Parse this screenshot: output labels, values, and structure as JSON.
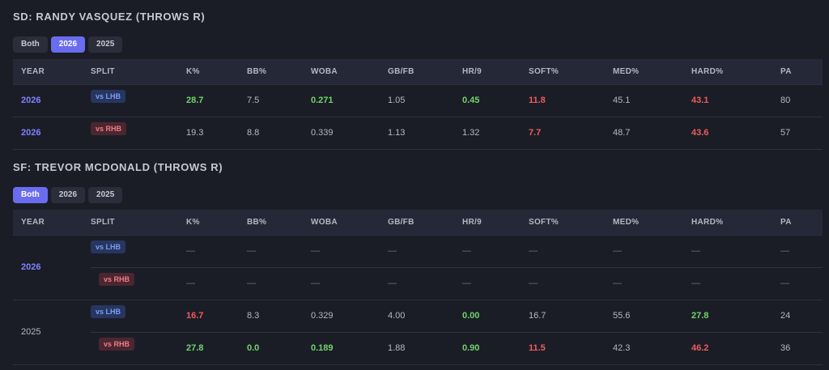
{
  "s1": {
    "title": "SD: RANDY VASQUEZ (THROWS R)",
    "buttons": [
      "Both",
      "2026",
      "2025"
    ],
    "active_button": "2026",
    "headers": [
      "YEAR",
      "SPLIT",
      "K%",
      "BB%",
      "WOBA",
      "GB/FB",
      "HR/9",
      "SOFT%",
      "MED%",
      "HARD%",
      "PA"
    ],
    "rows": [
      {
        "year": "2026",
        "split": "vs LHB",
        "k": "28.7",
        "bb": "7.5",
        "woba": "0.271",
        "gbfb": "1.05",
        "hr9": "0.45",
        "soft": "11.8",
        "med": "45.1",
        "hard": "43.1",
        "pa": "80"
      },
      {
        "year": "2026",
        "split": "vs RHB",
        "k": "19.3",
        "bb": "8.8",
        "woba": "0.339",
        "gbfb": "1.13",
        "hr9": "1.32",
        "soft": "7.7",
        "med": "48.7",
        "hard": "43.6",
        "pa": "57"
      }
    ]
  },
  "s2": {
    "title": "SF: TREVOR MCDONALD (THROWS R)",
    "buttons": [
      "Both",
      "2026",
      "2025"
    ],
    "active_button": "Both",
    "headers": [
      "YEAR",
      "SPLIT",
      "K%",
      "BB%",
      "WOBA",
      "GB/FB",
      "HR/9",
      "SOFT%",
      "MED%",
      "HARD%",
      "PA"
    ],
    "rows": [
      {
        "year": "2026",
        "split": "vs LHB",
        "k": "—",
        "bb": "—",
        "woba": "—",
        "gbfb": "—",
        "hr9": "—",
        "soft": "—",
        "med": "—",
        "hard": "—",
        "pa": "—"
      },
      {
        "year": "2026",
        "split": "vs RHB",
        "k": "—",
        "bb": "—",
        "woba": "—",
        "gbfb": "—",
        "hr9": "—",
        "soft": "—",
        "med": "—",
        "hard": "—",
        "pa": "—"
      },
      {
        "year": "2025",
        "split": "vs LHB",
        "k": "16.7",
        "bb": "8.3",
        "woba": "0.329",
        "gbfb": "4.00",
        "hr9": "0.00",
        "soft": "16.7",
        "med": "55.6",
        "hard": "27.8",
        "pa": "24"
      },
      {
        "year": "2025",
        "split": "vs RHB",
        "k": "27.8",
        "bb": "0.0",
        "woba": "0.189",
        "gbfb": "1.88",
        "hr9": "0.90",
        "soft": "11.5",
        "med": "42.3",
        "hard": "46.2",
        "pa": "36"
      }
    ]
  },
  "colors": {
    "accent": "#6a6cf0",
    "year_link": "#7f82ff",
    "good": "#6fd56b",
    "bad": "#ec5c5c",
    "lhb_pill": "#263660",
    "rhb_pill": "#4b2630"
  }
}
